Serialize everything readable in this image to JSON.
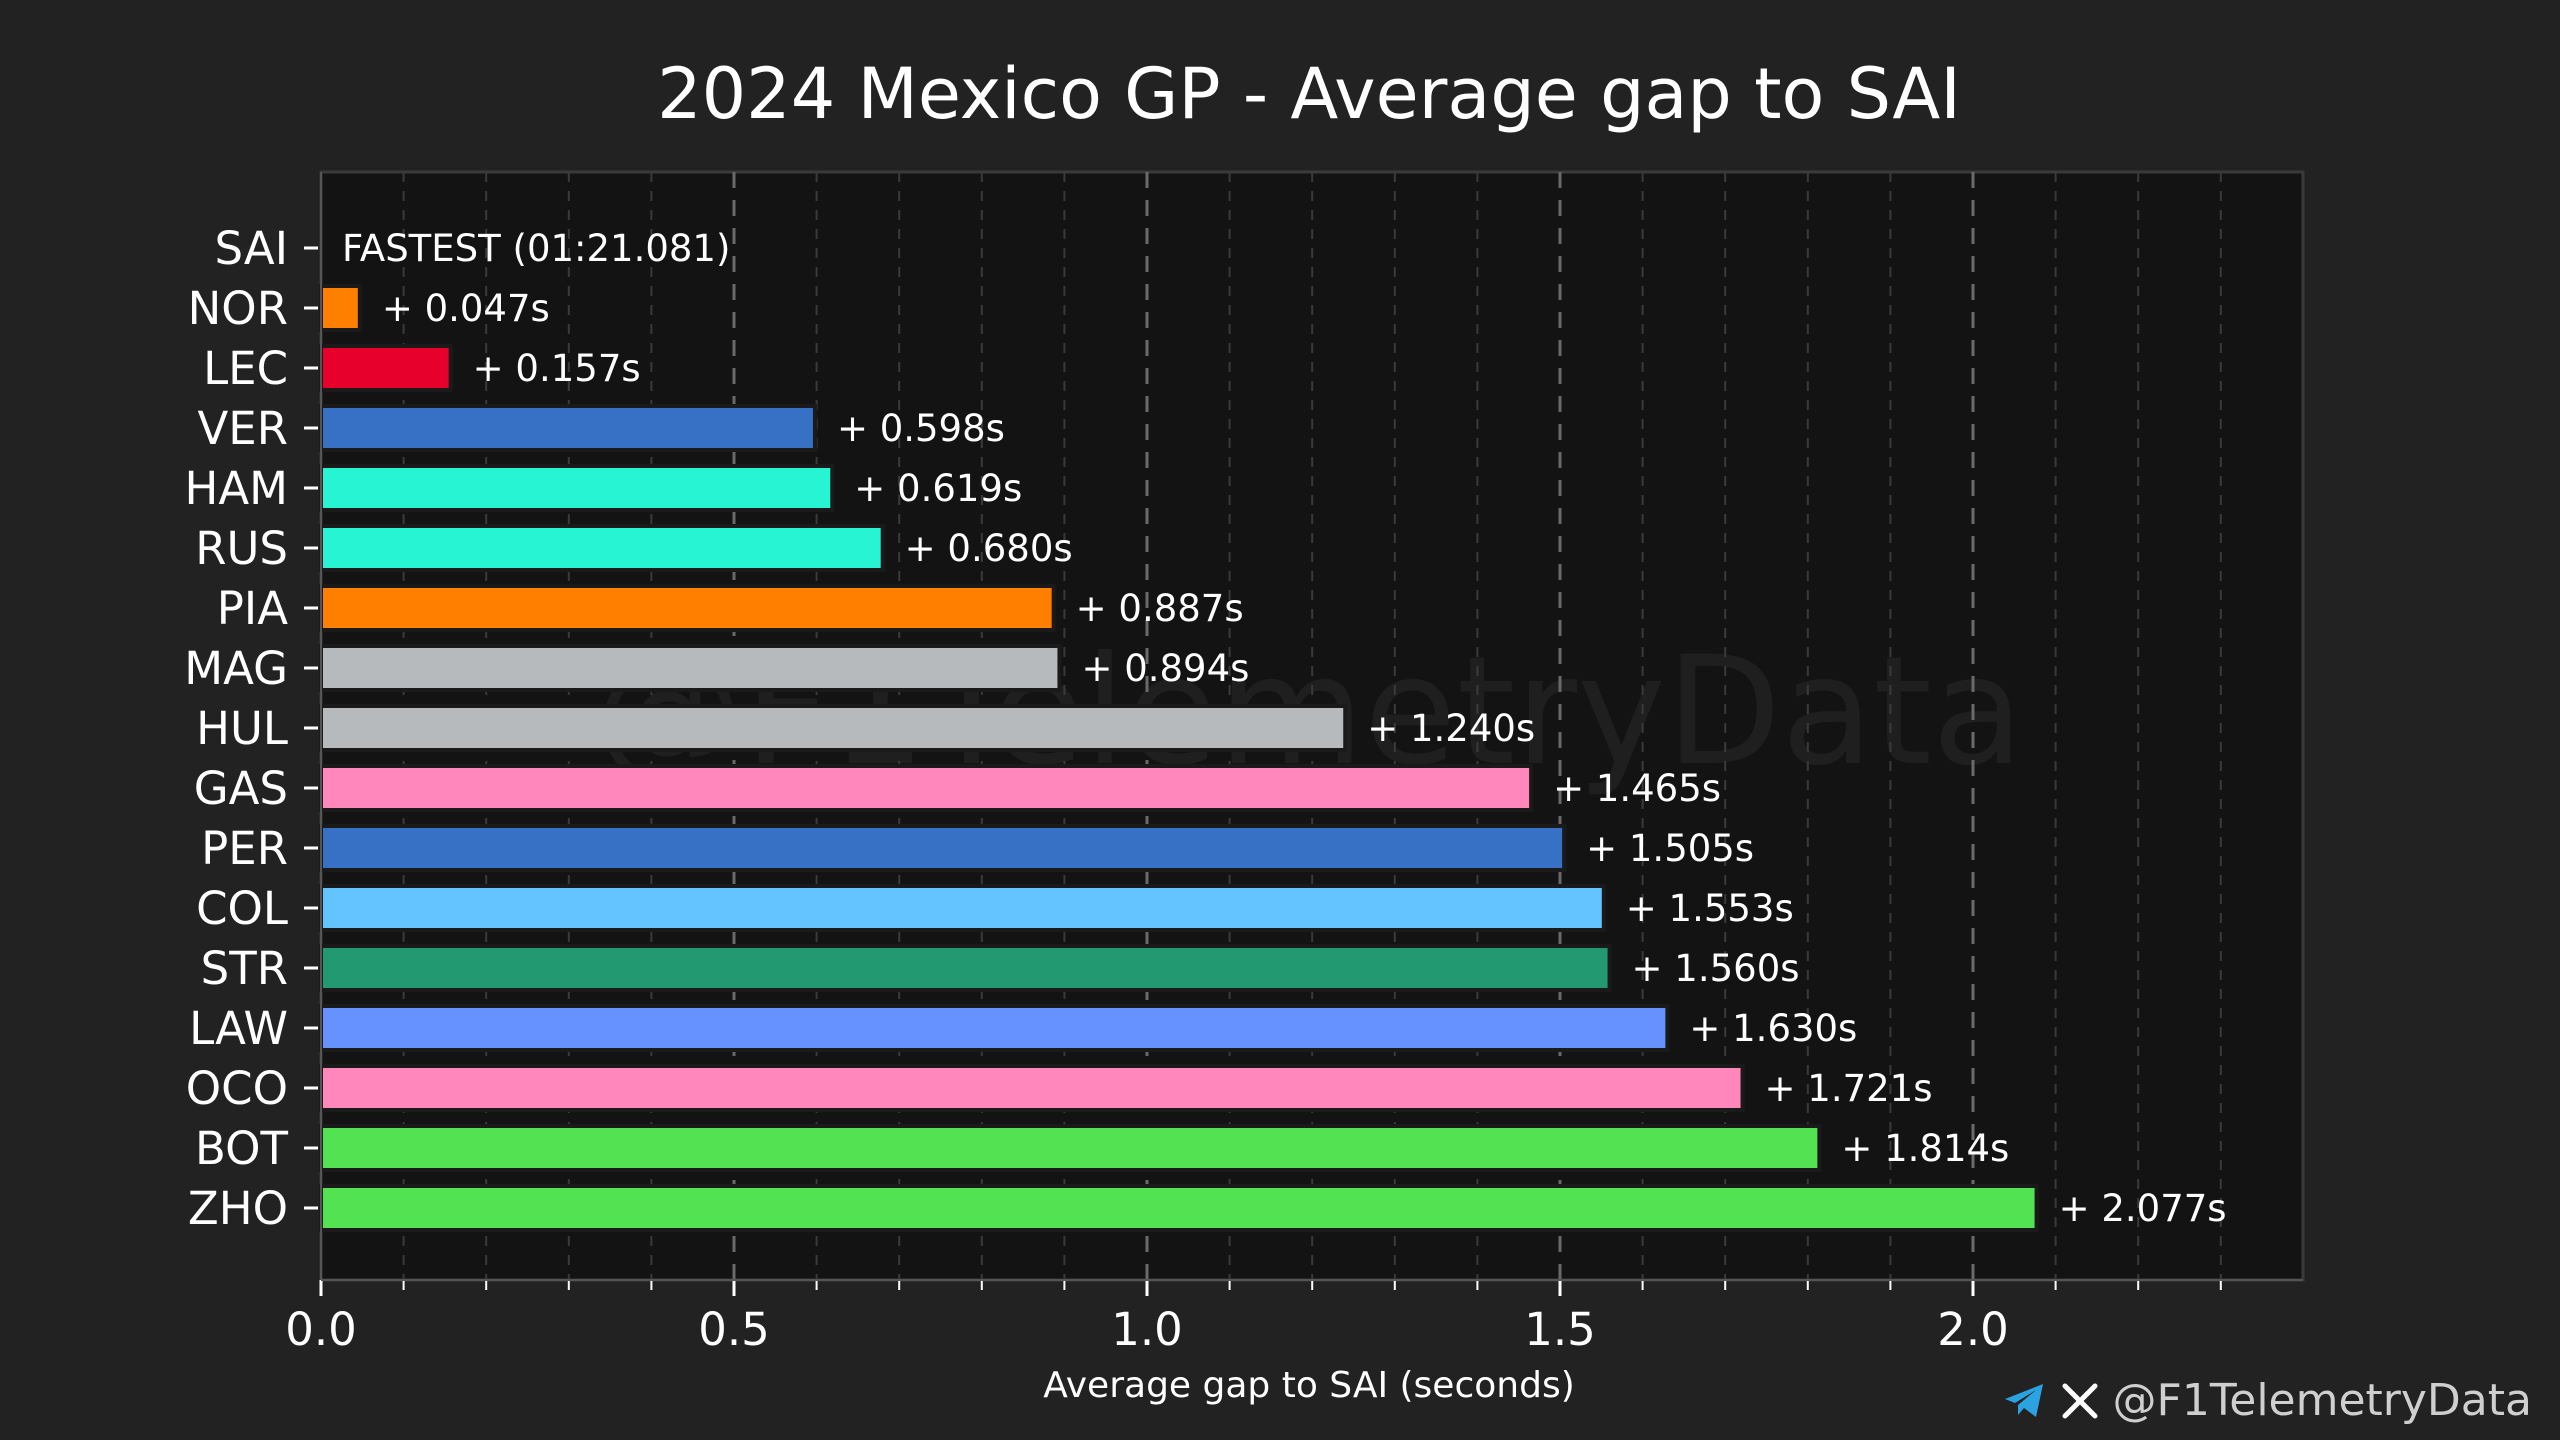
{
  "chart_data": {
    "type": "bar",
    "orientation": "horizontal",
    "title": "2024 Mexico GP - Average gap to SAI",
    "xlabel": "Average gap to SAI (seconds)",
    "ylabel": "",
    "xlim": [
      0,
      2.4
    ],
    "major_ticks": [
      0.0,
      0.5,
      1.0,
      1.5,
      2.0
    ],
    "major_tick_labels": [
      "0.0",
      "0.5",
      "1.0",
      "1.5",
      "2.0"
    ],
    "minor_ticks": [
      0.1,
      0.2,
      0.3,
      0.4,
      0.6,
      0.7,
      0.8,
      0.9,
      1.1,
      1.2,
      1.3,
      1.4,
      1.6,
      1.7,
      1.8,
      1.9,
      2.1,
      2.2,
      2.3
    ],
    "grid": true,
    "fastest_label": "FASTEST (01:21.081)",
    "bars": [
      {
        "driver": "SAI",
        "value": 0.0,
        "label": "FASTEST (01:21.081)",
        "color": "#e8002d"
      },
      {
        "driver": "NOR",
        "value": 0.047,
        "label": "+ 0.047s",
        "color": "#ff8000"
      },
      {
        "driver": "LEC",
        "value": 0.157,
        "label": "+ 0.157s",
        "color": "#e8002d"
      },
      {
        "driver": "VER",
        "value": 0.598,
        "label": "+ 0.598s",
        "color": "#3671c6"
      },
      {
        "driver": "HAM",
        "value": 0.619,
        "label": "+ 0.619s",
        "color": "#27f4d2"
      },
      {
        "driver": "RUS",
        "value": 0.68,
        "label": "+ 0.680s",
        "color": "#27f4d2"
      },
      {
        "driver": "PIA",
        "value": 0.887,
        "label": "+ 0.887s",
        "color": "#ff8000"
      },
      {
        "driver": "MAG",
        "value": 0.894,
        "label": "+ 0.894s",
        "color": "#b6babd"
      },
      {
        "driver": "HUL",
        "value": 1.24,
        "label": "+ 1.240s",
        "color": "#b6babd"
      },
      {
        "driver": "GAS",
        "value": 1.465,
        "label": "+ 1.465s",
        "color": "#ff87bc"
      },
      {
        "driver": "PER",
        "value": 1.505,
        "label": "+ 1.505s",
        "color": "#3671c6"
      },
      {
        "driver": "COL",
        "value": 1.553,
        "label": "+ 1.553s",
        "color": "#64c4ff"
      },
      {
        "driver": "STR",
        "value": 1.56,
        "label": "+ 1.560s",
        "color": "#229971"
      },
      {
        "driver": "LAW",
        "value": 1.63,
        "label": "+ 1.630s",
        "color": "#6692ff"
      },
      {
        "driver": "OCO",
        "value": 1.721,
        "label": "+ 1.721s",
        "color": "#ff87bc"
      },
      {
        "driver": "BOT",
        "value": 1.814,
        "label": "+ 1.814s",
        "color": "#52e252"
      },
      {
        "driver": "ZHO",
        "value": 2.077,
        "label": "+ 2.077s",
        "color": "#52e252"
      }
    ]
  },
  "watermark": "@F1TelemetryData",
  "credits": {
    "handle": "@F1TelemetryData",
    "icons": [
      "telegram-icon",
      "x-icon"
    ],
    "telegram_color": "#2aa3e0"
  },
  "colors": {
    "background": "#222222",
    "plot_background": "#131313",
    "text": "#ffffff"
  }
}
